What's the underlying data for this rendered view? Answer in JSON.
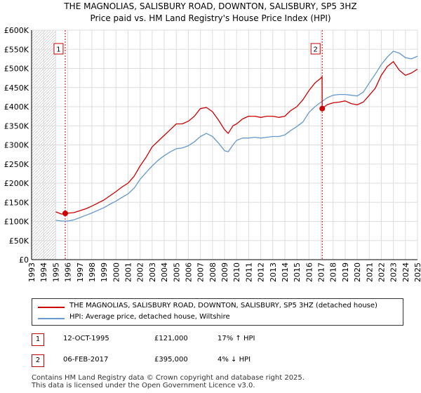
{
  "title_line1": "THE MAGNOLIAS, SALISBURY ROAD, DOWNTON, SALISBURY, SP5 3HZ",
  "title_line2": "Price paid vs. HM Land Registry's House Price Index (HPI)",
  "colors": {
    "property": "#cc0000",
    "hpi": "#6699cc",
    "hatch": "#cccccc",
    "marker": "#cc0000"
  },
  "chart_data": {
    "type": "line",
    "xlim": [
      1993,
      2025
    ],
    "ylim": [
      0,
      600000
    ],
    "yticks": [
      0,
      50000,
      100000,
      150000,
      200000,
      250000,
      300000,
      350000,
      400000,
      450000,
      500000,
      550000,
      600000
    ],
    "ytick_labels": [
      "£0",
      "£50K",
      "£100K",
      "£150K",
      "£200K",
      "£250K",
      "£300K",
      "£350K",
      "£400K",
      "£450K",
      "£500K",
      "£550K",
      "£600K"
    ],
    "xticks": [
      1993,
      1994,
      1995,
      1996,
      1997,
      1998,
      1999,
      2000,
      2001,
      2002,
      2003,
      2004,
      2005,
      2006,
      2007,
      2008,
      2009,
      2010,
      2011,
      2012,
      2013,
      2014,
      2015,
      2016,
      2017,
      2018,
      2019,
      2020,
      2021,
      2022,
      2023,
      2024,
      2025
    ],
    "hatch_before": 1995,
    "sales": [
      {
        "id": "1",
        "x": 1995.79,
        "y": 121000
      },
      {
        "id": "2",
        "x": 2017.1,
        "y": 395000
      }
    ],
    "series": [
      {
        "name": "THE MAGNOLIAS, SALISBURY ROAD, DOWNTON, SALISBURY, SP5 3HZ (detached house)",
        "x": [
          1995.0,
          1995.5,
          1995.79,
          1996.5,
          1997.0,
          1997.5,
          1998.0,
          1998.5,
          1999.0,
          1999.5,
          2000.0,
          2000.5,
          2001.0,
          2001.5,
          2002.0,
          2002.5,
          2003.0,
          2003.5,
          2004.0,
          2004.5,
          2005.0,
          2005.5,
          2006.0,
          2006.5,
          2007.0,
          2007.5,
          2008.0,
          2008.5,
          2009.0,
          2009.3,
          2009.7,
          2010.0,
          2010.5,
          2011.0,
          2011.5,
          2012.0,
          2012.5,
          2013.0,
          2013.5,
          2014.0,
          2014.5,
          2015.0,
          2015.5,
          2016.0,
          2016.5,
          2017.0,
          2017.09,
          2017.1,
          2017.5,
          2018.0,
          2018.5,
          2019.0,
          2019.5,
          2020.0,
          2020.5,
          2021.0,
          2021.5,
          2022.0,
          2022.5,
          2023.0,
          2023.5,
          2024.0,
          2024.5,
          2025.0
        ],
        "values": [
          125000,
          119000,
          121000,
          123000,
          128000,
          133000,
          140000,
          148000,
          156000,
          167000,
          178000,
          190000,
          200000,
          218000,
          245000,
          268000,
          295000,
          310000,
          325000,
          340000,
          355000,
          355000,
          362000,
          375000,
          395000,
          398000,
          387000,
          365000,
          340000,
          330000,
          350000,
          355000,
          368000,
          375000,
          375000,
          372000,
          375000,
          375000,
          372000,
          375000,
          390000,
          400000,
          418000,
          442000,
          462000,
          475000,
          478000,
          395000,
          405000,
          410000,
          412000,
          415000,
          408000,
          405000,
          412000,
          430000,
          448000,
          482000,
          505000,
          518000,
          495000,
          482000,
          488000,
          498000
        ]
      },
      {
        "name": "HPI: Average price, detached house, Wiltshire",
        "x": [
          1995.0,
          1995.5,
          1996.0,
          1996.5,
          1997.0,
          1997.5,
          1998.0,
          1998.5,
          1999.0,
          1999.5,
          2000.0,
          2000.5,
          2001.0,
          2001.5,
          2002.0,
          2002.5,
          2003.0,
          2003.5,
          2004.0,
          2004.5,
          2005.0,
          2005.5,
          2006.0,
          2006.5,
          2007.0,
          2007.5,
          2008.0,
          2008.5,
          2009.0,
          2009.3,
          2009.7,
          2010.0,
          2010.5,
          2011.0,
          2011.5,
          2012.0,
          2012.5,
          2013.0,
          2013.5,
          2014.0,
          2014.5,
          2015.0,
          2015.5,
          2016.0,
          2016.5,
          2017.0,
          2017.5,
          2018.0,
          2018.5,
          2019.0,
          2019.5,
          2020.0,
          2020.5,
          2021.0,
          2021.5,
          2022.0,
          2022.5,
          2023.0,
          2023.5,
          2024.0,
          2024.5,
          2025.0
        ],
        "values": [
          103000,
          101000,
          101000,
          104000,
          110000,
          116000,
          122000,
          129000,
          136000,
          145000,
          153000,
          163000,
          172000,
          187000,
          210000,
          228000,
          245000,
          260000,
          272000,
          282000,
          290000,
          292000,
          298000,
          308000,
          322000,
          330000,
          322000,
          305000,
          285000,
          282000,
          300000,
          312000,
          318000,
          318000,
          320000,
          318000,
          320000,
          322000,
          322000,
          326000,
          338000,
          348000,
          360000,
          385000,
          400000,
          412000,
          423000,
          430000,
          432000,
          432000,
          430000,
          428000,
          438000,
          462000,
          485000,
          510000,
          530000,
          545000,
          540000,
          528000,
          525000,
          532000
        ]
      }
    ]
  },
  "legend": {
    "property_label": "THE MAGNOLIAS, SALISBURY ROAD, DOWNTON, SALISBURY, SP5 3HZ (detached house)",
    "hpi_label": "HPI: Average price, detached house, Wiltshire"
  },
  "transactions": [
    {
      "id": "1",
      "date": "12-OCT-1995",
      "price": "£121,000",
      "hpi": "17% ↑ HPI"
    },
    {
      "id": "2",
      "date": "06-FEB-2017",
      "price": "£395,000",
      "hpi": "4% ↓ HPI"
    }
  ],
  "footer_line1": "Contains HM Land Registry data © Crown copyright and database right 2025.",
  "footer_line2": "This data is licensed under the Open Government Licence v3.0."
}
